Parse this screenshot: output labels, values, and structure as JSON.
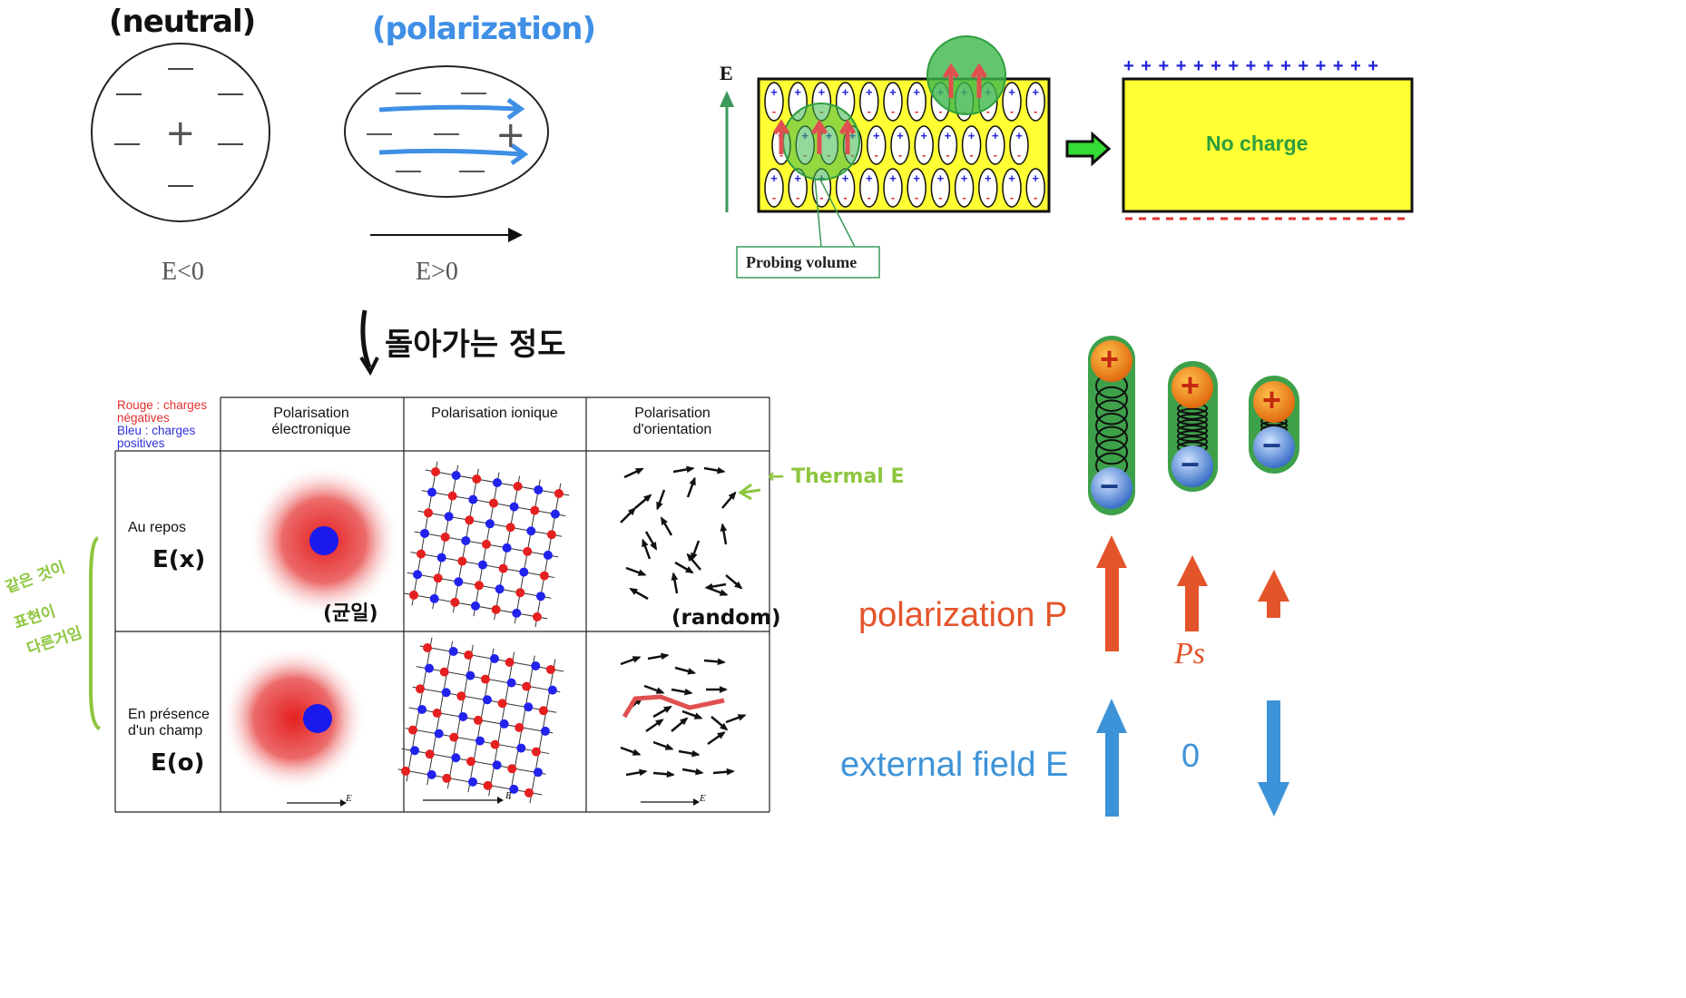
{
  "neutral_atom": {
    "title": "(neutral)",
    "field_label": "E<0",
    "negative_signs": [
      "—",
      "—",
      "—",
      "—",
      "—",
      "—"
    ],
    "positive_sign": "+"
  },
  "polarized_atom": {
    "title": "(polarization)",
    "field_label": "E>0",
    "positive_sign": "+"
  },
  "note_return": "돌아가는 정도",
  "dielectric": {
    "field_axis_label": "E",
    "probing_volume_label": "Probing volume",
    "no_charge_label": "No charge",
    "top_charges": "+ + + + + + + + + + + + + + +",
    "dipole_plus": "+",
    "dipole_minus": "-"
  },
  "polarisation_table": {
    "legend_red": "Rouge : charges négatives",
    "legend_blue": "Bleu : charges positives",
    "col_headers": [
      "Polarisation électronique",
      "Polarisation ionique",
      "Polarisation d'orientation"
    ],
    "row_labels": [
      "Au repos",
      "En présence d'un champ"
    ],
    "field_symbol": "E"
  },
  "handwritten_notes": {
    "row1_field": "E(x)",
    "row2_field": "E(o)",
    "electronic_note": "(균일)",
    "orientation_note": "(random)",
    "thermal_note": "← Thermal E",
    "bracket_note_line1": "같은 것이",
    "bracket_note_line2": "표현이",
    "bracket_note_line3": "다른거임"
  },
  "ferroelectric": {
    "polarization_label": "polarization P",
    "external_field_label": "external field E",
    "ps_label": "Ps",
    "zero_label": "0",
    "plus_sign": "+",
    "minus_sign": "−"
  },
  "colors": {
    "blue_note": "#3f8fe6",
    "green_note": "#8ec63f",
    "yellow_slab": "#ffff33",
    "green_highlight": "#3cb84a",
    "orange_arrow": "#e4542a",
    "blue_arrow": "#3d93d8"
  }
}
